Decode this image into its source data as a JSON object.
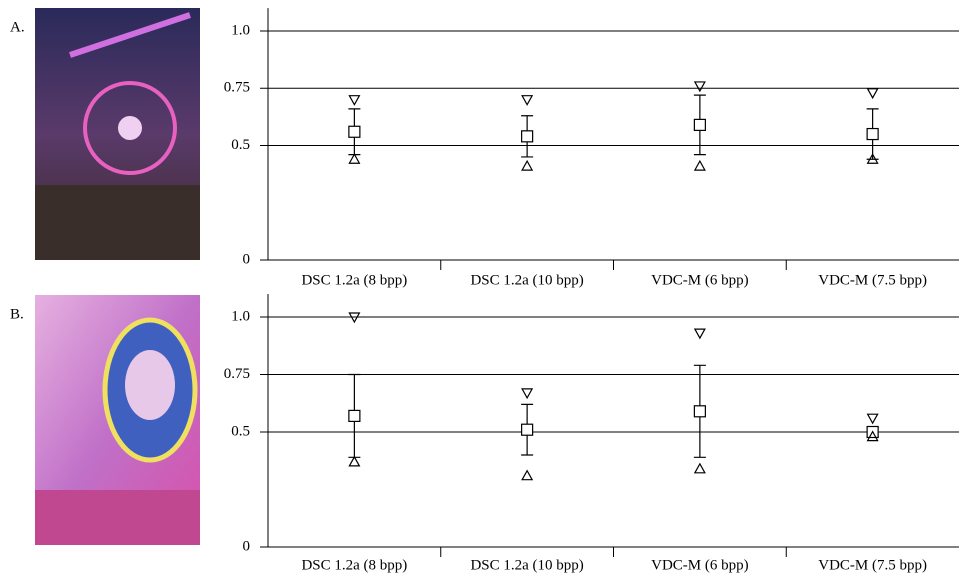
{
  "chart_data": [
    {
      "type": "errorbar",
      "label": "A.",
      "categories": [
        "DSC 1.2a (8 bpp)",
        "DSC 1.2a (10 bpp)",
        "VDC-M (6 bpp)",
        "VDC-M (7.5 bpp)"
      ],
      "mean": [
        0.56,
        0.54,
        0.59,
        0.55
      ],
      "error": [
        0.1,
        0.09,
        0.13,
        0.11
      ],
      "max": [
        0.7,
        0.7,
        0.76,
        0.73
      ],
      "min": [
        0.44,
        0.41,
        0.41,
        0.44
      ],
      "color": "#000000",
      "ylim": [
        0,
        1.1
      ],
      "yticks": [
        0,
        0.5,
        0.75,
        {
          "value": 1,
          "label": "1.0"
        }
      ],
      "grid": true
    },
    {
      "type": "errorbar",
      "label": "B.",
      "categories": [
        "DSC 1.2a (8 bpp)",
        "DSC 1.2a (10 bpp)",
        "VDC-M (6 bpp)",
        "VDC-M (7.5 bpp)"
      ],
      "mean": [
        0.57,
        0.51,
        0.59,
        0.5
      ],
      "error": [
        0.18,
        0.11,
        0.2,
        0.02
      ],
      "max": [
        1.0,
        0.67,
        0.93,
        0.56
      ],
      "min": [
        0.37,
        0.31,
        0.34,
        0.48
      ],
      "color": "#000000",
      "ylim": [
        0,
        1.1
      ],
      "yticks": [
        0,
        0.5,
        0.75,
        {
          "value": 1,
          "label": "1.0"
        }
      ],
      "grid": true
    }
  ]
}
